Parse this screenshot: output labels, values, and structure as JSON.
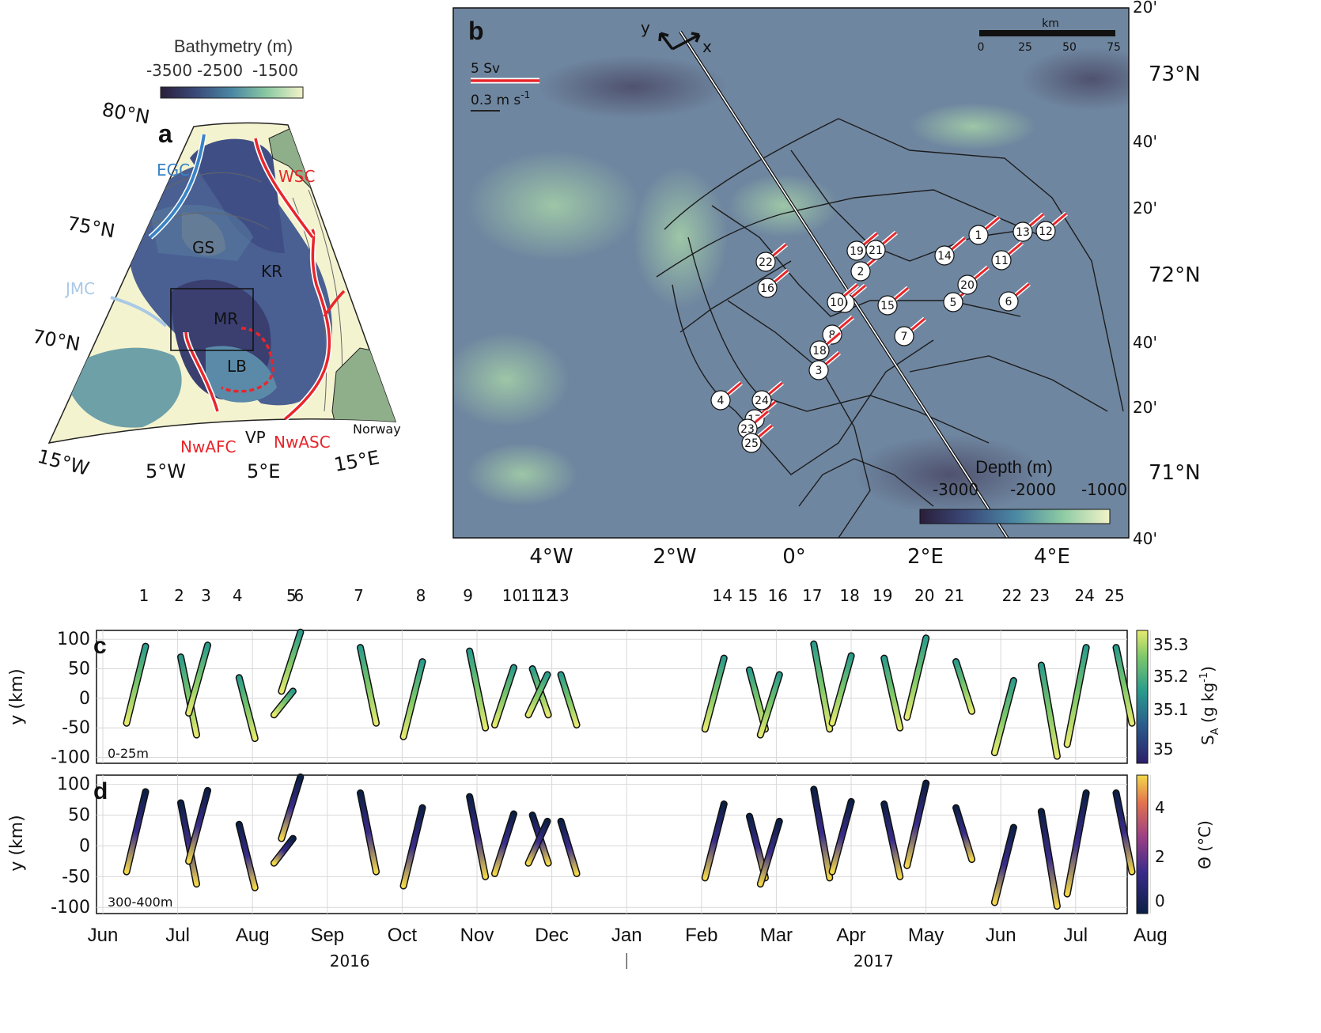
{
  "colors": {
    "bathy": [
      "#2a1e3a",
      "#3b4a7a",
      "#4a7aa0",
      "#5fa6a2",
      "#9fd0a3",
      "#f3f3c8"
    ],
    "depth_bg": "#6f86a0",
    "land": "#8fae8a",
    "shelf": "#f4f3cf",
    "red_current": "#e8262b",
    "egc_blue": "#3a84c6",
    "jmc_lightblue": "#a9c9e6",
    "sa_cmap": [
      "#2b1f6b",
      "#2a5f8c",
      "#2a9c8c",
      "#7cc76a",
      "#e6ea6e"
    ],
    "theta_cmap": [
      "#0b1f45",
      "#3a2c8a",
      "#9a3f86",
      "#e2734e",
      "#f3d84b"
    ]
  },
  "panel_a": {
    "letter": "a",
    "colorbar_title": "Bathymetry (m)",
    "colorbar_ticks": [
      "-3500",
      "-2500",
      "-1500"
    ],
    "lat_labels": [
      "80°N",
      "75°N",
      "70°N"
    ],
    "lon_labels": [
      "15°W",
      "5°W",
      "5°E",
      "15°E"
    ],
    "currents": [
      "EGC",
      "JMC",
      "WSC",
      "NwAFC",
      "NwASC"
    ],
    "features": [
      "GS",
      "KR",
      "MR",
      "LB",
      "VP",
      "Norway"
    ]
  },
  "panel_b": {
    "letter": "b",
    "axis_y_label": "y",
    "axis_x_label": "x",
    "scale_transport": "5 Sv",
    "scale_velocity": "0.3 m s",
    "scale_velocity_exp": "-1",
    "km_label": "km",
    "km_ticks": [
      "0",
      "25",
      "50",
      "75"
    ],
    "lat_labels": [
      "20'",
      "73°N",
      "40'",
      "20'",
      "72°N",
      "40'",
      "20'",
      "71°N",
      "40'"
    ],
    "lon_labels": [
      "4°W",
      "2°W",
      "0°",
      "2°E",
      "4°E"
    ],
    "colorbar_title": "Depth (m)",
    "colorbar_ticks": [
      "-3000",
      "-2000",
      "-1000"
    ],
    "section_ids": [
      "1",
      "2",
      "3",
      "4",
      "5",
      "6",
      "7",
      "8",
      "9",
      "10",
      "11",
      "12",
      "13",
      "14",
      "15",
      "16",
      "17",
      "18",
      "19",
      "20",
      "21",
      "22",
      "23",
      "24",
      "25"
    ]
  },
  "panel_c": {
    "letter": "c",
    "depth_label": "0-25m",
    "ylabel": "y (km)",
    "cbar_label": "S",
    "cbar_label_sub": "A",
    "cbar_label_unit": " (g kg",
    "cbar_label_exp": "-1",
    "cbar_label_close": ")",
    "cbar_ticks": [
      "35",
      "35.1",
      "35.2",
      "35.3"
    ]
  },
  "panel_d": {
    "letter": "d",
    "depth_label": "300-400m",
    "ylabel": "y (km)",
    "cbar_label": "Θ (°C)",
    "cbar_ticks": [
      "0",
      "2",
      "4"
    ]
  },
  "time_axis": {
    "months": [
      "Jun",
      "Jul",
      "Aug",
      "Sep",
      "Oct",
      "Nov",
      "Dec",
      "Jan",
      "Feb",
      "Mar",
      "Apr",
      "May",
      "Jun",
      "Jul",
      "Aug"
    ],
    "years": [
      "2016",
      "2017"
    ],
    "y_ticks": [
      "100",
      "50",
      "0",
      "-50",
      "-100"
    ],
    "ylim": [
      -110,
      115
    ]
  },
  "chart_data": {
    "type": "scatter",
    "xlabel": "",
    "ylabel": "y (km)",
    "x_range_months": [
      "Jun 2016",
      "Aug 2017"
    ],
    "ylim": [
      -110,
      115
    ],
    "sections": [
      {
        "id": "1",
        "month_pos": 0.55,
        "y": [
          -42,
          88
        ]
      },
      {
        "id": "2",
        "month_pos": 1.02,
        "y": [
          70,
          -62
        ]
      },
      {
        "id": "3",
        "month_pos": 1.38,
        "y": [
          -25,
          90
        ]
      },
      {
        "id": "4",
        "month_pos": 1.8,
        "y": [
          35,
          -68
        ]
      },
      {
        "id": "5",
        "month_pos": 2.52,
        "y": [
          -28,
          12
        ]
      },
      {
        "id": "6",
        "month_pos": 2.62,
        "y": [
          12,
          112
        ]
      },
      {
        "id": "7",
        "month_pos": 3.42,
        "y": [
          86,
          -42
        ]
      },
      {
        "id": "8",
        "month_pos": 4.25,
        "y": [
          -65,
          62
        ]
      },
      {
        "id": "9",
        "month_pos": 4.88,
        "y": [
          80,
          -50
        ]
      },
      {
        "id": "10",
        "month_pos": 5.47,
        "y": [
          -45,
          52
        ]
      },
      {
        "id": "11",
        "month_pos": 5.72,
        "y": [
          50,
          -28
        ]
      },
      {
        "id": "12",
        "month_pos": 5.92,
        "y": [
          -28,
          40
        ]
      },
      {
        "id": "13",
        "month_pos": 6.1,
        "y": [
          40,
          -45
        ]
      },
      {
        "id": "14",
        "month_pos": 8.28,
        "y": [
          -52,
          68
        ]
      },
      {
        "id": "15",
        "month_pos": 8.62,
        "y": [
          48,
          -52
        ]
      },
      {
        "id": "16",
        "month_pos": 9.02,
        "y": [
          -62,
          40
        ]
      },
      {
        "id": "17",
        "month_pos": 9.48,
        "y": [
          92,
          -52
        ]
      },
      {
        "id": "18",
        "month_pos": 9.98,
        "y": [
          -42,
          72
        ]
      },
      {
        "id": "19",
        "month_pos": 10.42,
        "y": [
          68,
          -50
        ]
      },
      {
        "id": "20",
        "month_pos": 10.98,
        "y": [
          -32,
          102
        ]
      },
      {
        "id": "21",
        "month_pos": 11.38,
        "y": [
          62,
          -22
        ]
      },
      {
        "id": "22",
        "month_pos": 12.15,
        "y": [
          -92,
          30
        ]
      },
      {
        "id": "23",
        "month_pos": 12.52,
        "y": [
          56,
          -98
        ]
      },
      {
        "id": "24",
        "month_pos": 13.12,
        "y": [
          -78,
          86
        ]
      },
      {
        "id": "25",
        "month_pos": 13.52,
        "y": [
          86,
          -42
        ]
      }
    ]
  }
}
